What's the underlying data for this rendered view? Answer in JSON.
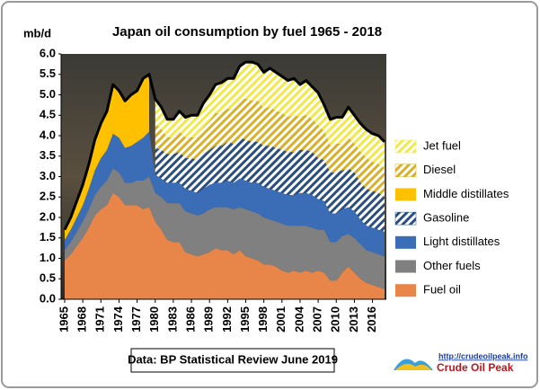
{
  "chart_data": {
    "type": "stacked-area",
    "title": "Japan oil consumption by fuel 1965 - 2018",
    "y_label": "mb/d",
    "source": "Data: BP Statistical Review June 2019",
    "logo_url": "http://crudeoilpeak.info",
    "logo_text": "Crude Oil Peak",
    "legend": "right",
    "x": [
      1965,
      1966,
      1967,
      1968,
      1969,
      1970,
      1971,
      1972,
      1973,
      1974,
      1975,
      1976,
      1977,
      1978,
      1979,
      1980,
      1981,
      1982,
      1983,
      1984,
      1985,
      1986,
      1987,
      1988,
      1989,
      1990,
      1991,
      1992,
      1993,
      1994,
      1995,
      1996,
      1997,
      1998,
      1999,
      2000,
      2001,
      2002,
      2003,
      2004,
      2005,
      2006,
      2007,
      2008,
      2009,
      2010,
      2011,
      2012,
      2013,
      2014,
      2015,
      2016,
      2017,
      2018
    ],
    "xlim": [
      1965,
      2018
    ],
    "xticks": [
      1965,
      1968,
      1971,
      1974,
      1977,
      1980,
      1983,
      1986,
      1989,
      1992,
      1995,
      1998,
      2001,
      2004,
      2007,
      2010,
      2013,
      2016
    ],
    "ylim": [
      0,
      6
    ],
    "yticks": [
      {
        "value": 0,
        "label": "0.0"
      },
      {
        "value": 0.5,
        "label": "0.5"
      },
      {
        "value": 1,
        "label": "1.0"
      },
      {
        "value": 1.5,
        "label": "1.5"
      },
      {
        "value": 2,
        "label": "2.0"
      },
      {
        "value": 2.5,
        "label": "2.5"
      },
      {
        "value": 3,
        "label": "3.0"
      },
      {
        "value": 3.5,
        "label": "3.5"
      },
      {
        "value": 4,
        "label": "4.0"
      },
      {
        "value": 4.5,
        "label": "4.5"
      },
      {
        "value": 5,
        "label": "5.0"
      },
      {
        "value": 5.5,
        "label": "5.5"
      },
      {
        "value": 6,
        "label": "6.0"
      }
    ],
    "series": [
      {
        "name": "Fuel oil",
        "color": "#e8864a",
        "hatch": false,
        "values": [
          0.95,
          1.1,
          1.3,
          1.5,
          1.75,
          2.05,
          2.2,
          2.3,
          2.6,
          2.5,
          2.3,
          2.3,
          2.3,
          2.2,
          2.25,
          1.9,
          1.7,
          1.45,
          1.4,
          1.4,
          1.15,
          1.1,
          1.05,
          1.1,
          1.15,
          1.25,
          1.2,
          1.2,
          1.1,
          1.2,
          1.05,
          1.0,
          0.95,
          0.85,
          0.85,
          0.8,
          0.7,
          0.65,
          0.7,
          0.65,
          0.7,
          0.65,
          0.7,
          0.65,
          0.45,
          0.45,
          0.65,
          0.8,
          0.65,
          0.5,
          0.4,
          0.35,
          0.3,
          0.25
        ]
      },
      {
        "name": "Other fuels",
        "color": "#808080",
        "hatch": false,
        "values": [
          0.25,
          0.3,
          0.35,
          0.4,
          0.45,
          0.5,
          0.55,
          0.6,
          0.6,
          0.6,
          0.55,
          0.55,
          0.6,
          0.7,
          0.75,
          0.7,
          0.8,
          0.9,
          0.95,
          0.95,
          1.0,
          1.0,
          1.0,
          1.0,
          1.05,
          1.0,
          1.05,
          1.05,
          1.1,
          1.05,
          1.15,
          1.15,
          1.15,
          1.15,
          1.1,
          1.1,
          1.15,
          1.15,
          1.1,
          1.15,
          1.1,
          1.1,
          1.0,
          1.05,
          0.95,
          0.95,
          0.9,
          0.8,
          0.85,
          0.85,
          0.8,
          0.8,
          0.8,
          0.8
        ]
      },
      {
        "name": "Light distillates",
        "color": "#3a6db5",
        "hatch": false,
        "values": [
          0.25,
          0.3,
          0.35,
          0.4,
          0.5,
          0.6,
          0.7,
          0.75,
          0.85,
          0.85,
          0.85,
          0.9,
          0.95,
          1.05,
          1.1,
          0.45,
          0.45,
          0.5,
          0.5,
          0.5,
          0.55,
          0.55,
          0.55,
          0.6,
          0.6,
          0.6,
          0.6,
          0.65,
          0.65,
          0.7,
          0.7,
          0.7,
          0.75,
          0.75,
          0.75,
          0.75,
          0.75,
          0.75,
          0.75,
          0.8,
          0.8,
          0.8,
          0.75,
          0.7,
          0.7,
          0.7,
          0.65,
          0.65,
          0.65,
          0.6,
          0.6,
          0.6,
          0.6,
          0.6
        ]
      },
      {
        "name": "Gasoline",
        "color": "#2a4f7f",
        "hatch": true,
        "values": [
          null,
          null,
          null,
          null,
          null,
          null,
          null,
          null,
          null,
          null,
          null,
          null,
          null,
          null,
          null,
          0.65,
          0.7,
          0.7,
          0.7,
          0.75,
          0.75,
          0.8,
          0.8,
          0.85,
          0.85,
          0.9,
          0.9,
          0.95,
          0.95,
          1.0,
          1.0,
          1.0,
          1.0,
          1.0,
          1.05,
          1.05,
          1.05,
          1.05,
          1.05,
          1.05,
          1.05,
          1.05,
          1.0,
          1.0,
          1.0,
          1.0,
          0.95,
          0.95,
          0.95,
          0.9,
          0.9,
          0.9,
          0.9,
          0.85
        ]
      },
      {
        "name": "Middle distillates",
        "color": "#ffc000",
        "hatch": false,
        "values": [
          0.25,
          0.3,
          0.4,
          0.5,
          0.6,
          0.75,
          0.85,
          0.95,
          1.2,
          1.15,
          1.15,
          1.25,
          1.25,
          1.45,
          1.4,
          null,
          null,
          null,
          null,
          null,
          null,
          null,
          null,
          null,
          null,
          null,
          null,
          null,
          null,
          null,
          null,
          null,
          null,
          null,
          null,
          null,
          null,
          null,
          null,
          null,
          null,
          null,
          null,
          null,
          null,
          null,
          null,
          null,
          null,
          null,
          null,
          null,
          null,
          null
        ]
      },
      {
        "name": "Diesel",
        "color": "#d8b02a",
        "hatch": true,
        "values": [
          null,
          null,
          null,
          null,
          null,
          null,
          null,
          null,
          null,
          null,
          null,
          null,
          null,
          null,
          null,
          0.6,
          0.5,
          0.4,
          0.4,
          0.5,
          0.5,
          0.5,
          0.55,
          0.65,
          0.7,
          0.8,
          0.8,
          0.8,
          0.85,
          0.9,
          1.0,
          1.0,
          1.0,
          0.9,
          0.95,
          0.9,
          0.9,
          0.85,
          0.9,
          0.8,
          0.85,
          0.8,
          0.8,
          0.7,
          0.65,
          0.7,
          0.65,
          0.75,
          0.7,
          0.75,
          0.75,
          0.7,
          0.7,
          0.7
        ]
      },
      {
        "name": "Jet fuel",
        "color": "#f2e84a",
        "hatch": true,
        "values": [
          null,
          null,
          null,
          null,
          null,
          null,
          null,
          null,
          null,
          null,
          null,
          null,
          null,
          null,
          null,
          0.6,
          0.55,
          0.45,
          0.45,
          0.5,
          0.5,
          0.55,
          0.55,
          0.6,
          0.65,
          0.7,
          0.75,
          0.75,
          0.75,
          0.85,
          0.9,
          0.95,
          0.9,
          0.9,
          0.95,
          0.95,
          0.9,
          0.9,
          0.9,
          0.8,
          0.85,
          0.8,
          0.8,
          0.65,
          0.65,
          0.65,
          0.65,
          0.75,
          0.7,
          0.7,
          0.7,
          0.7,
          0.7,
          0.65
        ]
      }
    ]
  }
}
